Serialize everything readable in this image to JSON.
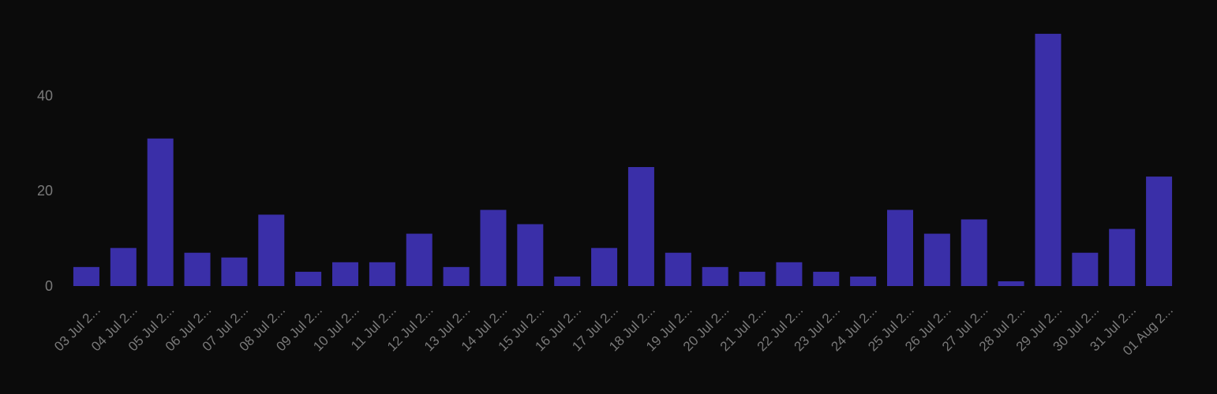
{
  "chart_data": {
    "type": "bar",
    "categories": [
      "03 Jul 2...",
      "04 Jul 2...",
      "05 Jul 2...",
      "06 Jul 2...",
      "07 Jul 2...",
      "08 Jul 2...",
      "09 Jul 2...",
      "10 Jul 2...",
      "11 Jul 2...",
      "12 Jul 2...",
      "13 Jul 2...",
      "14 Jul 2...",
      "15 Jul 2...",
      "16 Jul 2...",
      "17 Jul 2...",
      "18 Jul 2...",
      "19 Jul 2...",
      "20 Jul 2...",
      "21 Jul 2...",
      "22 Jul 2...",
      "23 Jul 2...",
      "24 Jul 2...",
      "25 Jul 2...",
      "26 Jul 2...",
      "27 Jul 2...",
      "28 Jul 2...",
      "29 Jul 2...",
      "30 Jul 2...",
      "31 Jul 2...",
      "01 Aug 2..."
    ],
    "values": [
      4,
      8,
      31,
      7,
      6,
      15,
      3,
      5,
      5,
      11,
      4,
      16,
      13,
      2,
      8,
      25,
      7,
      4,
      3,
      5,
      3,
      2,
      16,
      11,
      14,
      1,
      53,
      7,
      12,
      23
    ],
    "yticks": [
      "0",
      "20",
      "40"
    ],
    "ylim": [
      0,
      53
    ],
    "grid": false,
    "legend": "none",
    "colors": {
      "background": "#0b0b0b",
      "bar": "#3a2fa8",
      "tick_text": "#7a7a7a"
    }
  }
}
